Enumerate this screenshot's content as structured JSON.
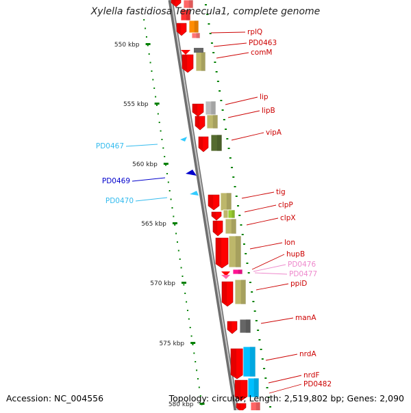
{
  "title": "Xylella fastidiosa Temecula1, complete genome",
  "footer": {
    "accession": "Accession: NC_004556",
    "stats": "Topology: circular; Length: 2,519,802 bp; Genes: 2,090"
  },
  "scale_labels": [
    "550 kbp",
    "555 kbp",
    "560 kbp",
    "565 kbp",
    "570 kbp",
    "575 kbp",
    "580 kbp"
  ],
  "colors": {
    "red": "#ff0000",
    "khaki": "#bdb76b",
    "cyan": "#33ccff",
    "blue": "#0000cc",
    "pink": "#ee82ee",
    "magenta": "#ff1493",
    "green": "#008000",
    "gray_backbone": "#888888"
  },
  "gene_labels": [
    {
      "name": "rplQ",
      "color": "#cc0000"
    },
    {
      "name": "PD0463",
      "color": "#cc0000"
    },
    {
      "name": "comM",
      "color": "#cc0000"
    },
    {
      "name": "lip",
      "color": "#cc0000"
    },
    {
      "name": "lipB",
      "color": "#cc0000"
    },
    {
      "name": "vipA",
      "color": "#cc0000"
    },
    {
      "name": "PD0467",
      "color": "#33bbee"
    },
    {
      "name": "PD0469",
      "color": "#0000cc"
    },
    {
      "name": "PD0470",
      "color": "#33bbee"
    },
    {
      "name": "tig",
      "color": "#cc0000"
    },
    {
      "name": "clpP",
      "color": "#cc0000"
    },
    {
      "name": "clpX",
      "color": "#cc0000"
    },
    {
      "name": "lon",
      "color": "#cc0000"
    },
    {
      "name": "hupB",
      "color": "#cc0000"
    },
    {
      "name": "PD0476",
      "color": "#ee88cc"
    },
    {
      "name": "PD0477",
      "color": "#ee88cc"
    },
    {
      "name": "ppiD",
      "color": "#cc0000"
    },
    {
      "name": "manA",
      "color": "#cc0000"
    },
    {
      "name": "nrdA",
      "color": "#cc0000"
    },
    {
      "name": "nrdF",
      "color": "#cc0000"
    },
    {
      "name": "PD0482",
      "color": "#cc0000"
    }
  ]
}
